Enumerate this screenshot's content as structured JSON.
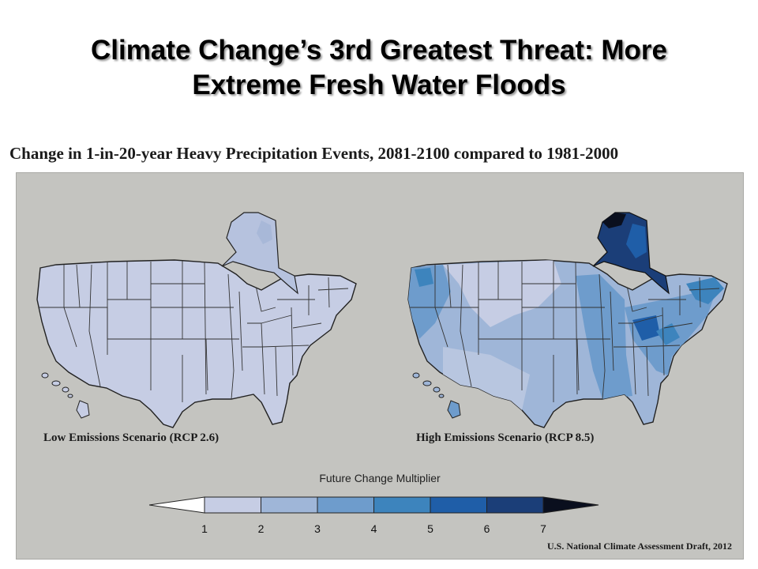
{
  "slide": {
    "title_line1": "Climate Change’s 3rd Greatest Threat: More",
    "title_line2": "Extreme Fresh Water Floods"
  },
  "figure": {
    "heading": "Change in 1-in-20-year Heavy Precipitation Events, 2081-2100 compared to 1981-2000",
    "maps": [
      {
        "caption": "Low Emissions Scenario (RCP 2.6)",
        "dominant_multiplier": "1-2"
      },
      {
        "caption": "High Emissions Scenario (RCP 8.5)",
        "dominant_multiplier": "2-5",
        "alaska_multiplier": "5-7"
      }
    ],
    "legend": {
      "title": "Future Change Multiplier",
      "ticks": [
        "1",
        "2",
        "3",
        "4",
        "5",
        "6",
        "7"
      ],
      "colors": [
        "#ffffff",
        "#c6cde4",
        "#9fb6d8",
        "#6e9ccc",
        "#3d84bd",
        "#1f5ea8",
        "#1b3e78",
        "#0a0f1e"
      ]
    },
    "source": "U.S. National Climate Assessment Draft, 2012"
  }
}
